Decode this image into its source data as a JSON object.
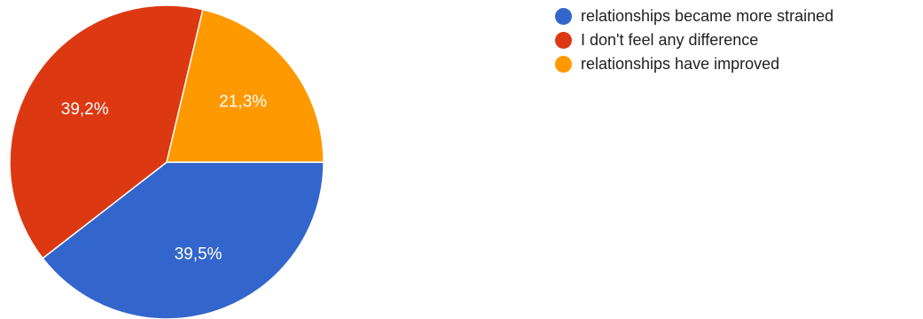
{
  "chart_data": {
    "type": "pie",
    "slices": [
      {
        "label": "relationships became more strained",
        "value": 39.5,
        "display": "39,5%",
        "color": "#3366cc"
      },
      {
        "label": "I don't feel any difference",
        "value": 39.2,
        "display": "39,2%",
        "color": "#dc3912"
      },
      {
        "label": "relationships have improved",
        "value": 21.3,
        "display": "21,3%",
        "color": "#ff9900"
      }
    ],
    "legend_position": "top-right"
  }
}
